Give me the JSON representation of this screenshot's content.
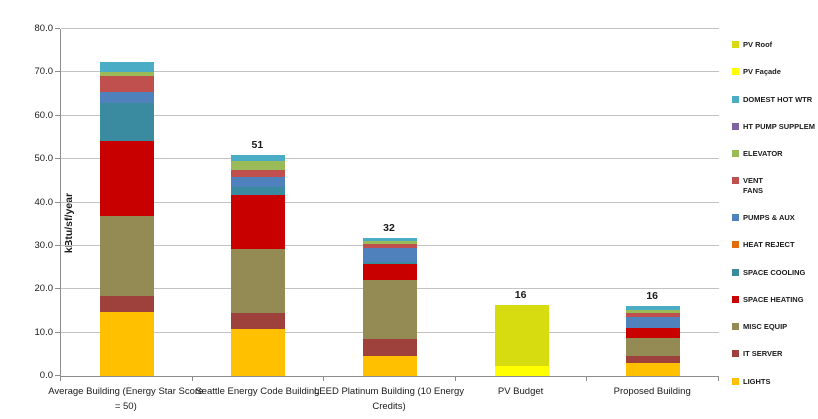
{
  "chart_data": {
    "type": "bar",
    "stacked": true,
    "ylabel": "kBtu/sf/year",
    "ylim": [
      0,
      80
    ],
    "ytick_step": 10,
    "grid": true,
    "legend_position": "right",
    "axis_color": "#8c8c8c",
    "gridline_color": "#c3c3c3",
    "categories": [
      "Average Building (Energy Star Score = 50)",
      "Seattle Energy Code Building",
      "LEED Platinum Building (10 Energy Credits)",
      "PV Budget",
      "Proposed Building"
    ],
    "total_labels": [
      "",
      "51",
      "32",
      "16",
      "16"
    ],
    "series": [
      {
        "name": "LIGHTS",
        "color": "#ffc000",
        "values": [
          14.8,
          10.8,
          4.5,
          0,
          2.9
        ]
      },
      {
        "name": "IT SERVER",
        "color": "#9e413d",
        "values": [
          3.7,
          3.7,
          4.0,
          0,
          1.6
        ]
      },
      {
        "name": "MISC EQUIP",
        "color": "#948a54",
        "values": [
          18.5,
          14.7,
          13.7,
          0,
          4.3
        ]
      },
      {
        "name": "SPACE HEATING",
        "color": "#c90000",
        "values": [
          17.3,
          12.6,
          3.6,
          0,
          2.3
        ]
      },
      {
        "name": "SPACE COOLING",
        "color": "#3a8ba0",
        "values": [
          8.7,
          1.8,
          0.4,
          0,
          0
        ]
      },
      {
        "name": "HEAT REJECT",
        "color": "#e36c0a",
        "values": [
          0,
          0,
          0,
          0,
          0
        ]
      },
      {
        "name": "PUMPS & AUX",
        "color": "#4f81bd",
        "values": [
          2.4,
          2.4,
          3.3,
          0,
          2.5
        ]
      },
      {
        "name": "VENT FANS",
        "color": "#c0504d",
        "values": [
          3.7,
          1.4,
          1.0,
          0,
          0.9
        ],
        "legend_label": "VENT\nFANS"
      },
      {
        "name": "ELEVATOR",
        "color": "#9bbb59",
        "values": [
          1.1,
          2.1,
          0.6,
          0,
          0.7
        ]
      },
      {
        "name": "HT PUMP SUPPLEM",
        "color": "#8064a2",
        "values": [
          0,
          0,
          0,
          0,
          0
        ]
      },
      {
        "name": "DOMEST HOT WTR",
        "color": "#4bacc6",
        "values": [
          2.3,
          1.5,
          0.8,
          0,
          0.9
        ]
      },
      {
        "name": "PV Façade",
        "color": "#ffff00",
        "values": [
          0,
          0,
          0,
          2.3,
          0
        ]
      },
      {
        "name": "PV Roof",
        "color": "#d6dc0f",
        "values": [
          0,
          0,
          0,
          14.0,
          0
        ]
      }
    ]
  }
}
